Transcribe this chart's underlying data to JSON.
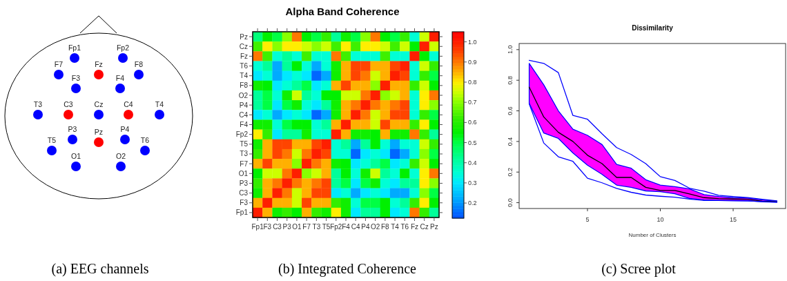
{
  "chart_data": [
    {
      "type": "other",
      "annotations": [
        "(a) EEG channels"
      ],
      "categories": [
        "Fp1",
        "Fp2",
        "F7",
        "Fz",
        "F8",
        "F3",
        "F4",
        "T3",
        "C3",
        "Cz",
        "C4",
        "T4",
        "P3",
        "Pz",
        "P4",
        "T5",
        "T6",
        "O1",
        "O2"
      ],
      "colors": [
        "#0000ff",
        "#0000ff",
        "#0000ff",
        "#ff0000",
        "#0000ff",
        "#0000ff",
        "#0000ff",
        "#0000ff",
        "#ff0000",
        "#0000ff",
        "#ff0000",
        "#0000ff",
        "#0000ff",
        "#ff0000",
        "#0000ff",
        "#0000ff",
        "#0000ff",
        "#0000ff",
        "#0000ff"
      ]
    },
    {
      "type": "heatmap",
      "title": "Alpha Band Coherence",
      "annotations": [
        "(b) Integrated Coherence"
      ],
      "categories": [
        "Fp1",
        "F3",
        "C3",
        "P3",
        "O1",
        "F7",
        "T3",
        "T5",
        "Fp2",
        "F4",
        "C4",
        "P4",
        "O2",
        "F8",
        "T4",
        "T6",
        "Fz",
        "Cz",
        "Pz"
      ],
      "y_categories": [
        "Pz",
        "Cz",
        "Fz",
        "T6",
        "T4",
        "F8",
        "O2",
        "P4",
        "C4",
        "F4",
        "Fp2",
        "T5",
        "T3",
        "F7",
        "O1",
        "P3",
        "C3",
        "F3",
        "Fp1"
      ],
      "cells": [
        [
          0.45,
          0.55,
          0.5,
          0.7,
          0.9,
          0.55,
          0.5,
          0.62,
          0.42,
          0.57,
          0.5,
          0.7,
          0.9,
          0.55,
          0.5,
          0.62,
          0.35,
          0.75,
          1.0
        ],
        [
          0.63,
          0.8,
          0.7,
          0.8,
          0.8,
          0.75,
          0.7,
          0.75,
          0.63,
          0.8,
          0.63,
          0.8,
          0.8,
          0.75,
          0.63,
          0.75,
          0.55,
          1.0,
          0.75
        ],
        [
          0.9,
          0.63,
          0.35,
          0.42,
          0.35,
          0.63,
          0.35,
          0.35,
          0.9,
          0.63,
          0.35,
          0.35,
          0.35,
          0.63,
          0.35,
          0.35,
          1.0,
          0.55,
          0.35
        ],
        [
          0.35,
          0.42,
          0.22,
          0.42,
          0.55,
          0.35,
          0.22,
          0.35,
          0.57,
          0.85,
          0.95,
          0.95,
          0.85,
          0.85,
          0.95,
          1.0,
          0.35,
          0.75,
          0.62
        ],
        [
          0.3,
          0.35,
          0.22,
          0.3,
          0.35,
          0.3,
          0.15,
          0.22,
          0.57,
          0.85,
          0.95,
          0.9,
          0.75,
          0.85,
          1.0,
          0.95,
          0.35,
          0.62,
          0.5
        ],
        [
          0.57,
          0.55,
          0.3,
          0.35,
          0.42,
          0.5,
          0.3,
          0.35,
          0.85,
          0.95,
          0.85,
          0.85,
          0.7,
          1.0,
          0.85,
          0.85,
          0.62,
          0.75,
          0.55
        ],
        [
          0.42,
          0.5,
          0.35,
          0.57,
          0.75,
          0.42,
          0.35,
          0.55,
          0.55,
          0.75,
          0.75,
          0.9,
          1.0,
          0.7,
          0.75,
          0.85,
          0.35,
          0.8,
          0.9
        ],
        [
          0.42,
          0.5,
          0.3,
          0.5,
          0.57,
          0.35,
          0.3,
          0.42,
          0.57,
          0.85,
          0.9,
          1.0,
          0.9,
          0.85,
          0.9,
          0.95,
          0.35,
          0.8,
          0.7
        ],
        [
          0.3,
          0.35,
          0.22,
          0.3,
          0.35,
          0.3,
          0.15,
          0.22,
          0.57,
          0.85,
          1.0,
          0.9,
          0.75,
          0.85,
          0.95,
          0.95,
          0.35,
          0.62,
          0.5
        ],
        [
          0.57,
          0.57,
          0.35,
          0.5,
          0.55,
          0.55,
          0.35,
          0.42,
          0.85,
          1.0,
          0.85,
          0.85,
          0.75,
          0.95,
          0.85,
          0.85,
          0.62,
          0.8,
          0.55
        ],
        [
          0.8,
          0.62,
          0.3,
          0.42,
          0.42,
          0.57,
          0.35,
          0.35,
          1.0,
          0.85,
          0.57,
          0.57,
          0.55,
          0.85,
          0.57,
          0.57,
          0.9,
          0.62,
          0.42
        ],
        [
          0.57,
          0.85,
          0.95,
          0.95,
          0.85,
          0.85,
          0.95,
          1.0,
          0.35,
          0.42,
          0.22,
          0.42,
          0.55,
          0.35,
          0.22,
          0.35,
          0.35,
          0.75,
          0.62
        ],
        [
          0.62,
          0.85,
          0.95,
          0.9,
          0.75,
          0.9,
          1.0,
          0.95,
          0.35,
          0.35,
          0.15,
          0.3,
          0.35,
          0.3,
          0.15,
          0.22,
          0.35,
          0.7,
          0.5
        ],
        [
          0.85,
          0.95,
          0.85,
          0.85,
          0.7,
          1.0,
          0.9,
          0.85,
          0.57,
          0.55,
          0.3,
          0.35,
          0.42,
          0.5,
          0.3,
          0.35,
          0.62,
          0.75,
          0.55
        ],
        [
          0.55,
          0.75,
          0.75,
          0.9,
          1.0,
          0.7,
          0.75,
          0.85,
          0.42,
          0.55,
          0.35,
          0.57,
          0.75,
          0.42,
          0.35,
          0.55,
          0.35,
          0.8,
          0.9
        ],
        [
          0.62,
          0.85,
          0.9,
          1.0,
          0.9,
          0.85,
          0.9,
          0.95,
          0.42,
          0.5,
          0.3,
          0.5,
          0.57,
          0.35,
          0.3,
          0.42,
          0.42,
          0.8,
          0.7
        ],
        [
          0.57,
          0.85,
          1.0,
          0.9,
          0.75,
          0.85,
          0.95,
          0.95,
          0.3,
          0.35,
          0.22,
          0.3,
          0.35,
          0.3,
          0.22,
          0.22,
          0.35,
          0.7,
          0.5
        ],
        [
          0.85,
          1.0,
          0.85,
          0.85,
          0.75,
          0.95,
          0.85,
          0.85,
          0.62,
          0.57,
          0.35,
          0.5,
          0.5,
          0.55,
          0.35,
          0.42,
          0.62,
          0.8,
          0.55
        ],
        [
          1.0,
          0.85,
          0.57,
          0.62,
          0.55,
          0.85,
          0.62,
          0.57,
          0.8,
          0.57,
          0.3,
          0.42,
          0.42,
          0.55,
          0.3,
          0.35,
          0.9,
          0.62,
          0.42
        ]
      ],
      "clim": [
        0.125,
        1.05
      ],
      "cticks": [
        {
          "value": 0.2,
          "label": "0.2"
        },
        {
          "value": 0.3,
          "label": "0.3"
        },
        {
          "value": 0.4,
          "label": "0.4"
        },
        {
          "value": 0.5,
          "label": "0.5"
        },
        {
          "value": 0.6,
          "label": "0.6"
        },
        {
          "value": 0.7,
          "label": "0.7"
        },
        {
          "value": 0.8,
          "label": "0.8"
        },
        {
          "value": 0.9,
          "label": "0.9"
        },
        {
          "value": 1.0,
          "label": "1.0"
        }
      ]
    },
    {
      "type": "line",
      "title": "Dissimilarity",
      "xlabel": "Number of Clusters",
      "annotations": [
        "(c) Scree plot"
      ],
      "x": [
        1,
        2,
        3,
        4,
        5,
        6,
        7,
        8,
        9,
        10,
        11,
        12,
        13,
        14,
        15,
        16,
        17,
        18
      ],
      "series": [
        {
          "color": "#000000",
          "values": [
            0.755,
            0.56,
            0.46,
            0.4,
            0.31,
            0.255,
            0.165,
            0.165,
            0.1,
            0.08,
            0.08,
            0.057,
            0.033,
            0.027,
            0.024,
            0.022,
            0.01,
            0.006
          ],
          "lower": [
            0.65,
            0.455,
            0.42,
            0.325,
            0.245,
            0.185,
            0.115,
            0.1,
            0.077,
            0.072,
            0.058,
            0.028,
            0.018,
            0.016,
            0.014,
            0.013,
            0.006,
            0.003
          ],
          "upper": [
            0.91,
            0.77,
            0.6,
            0.48,
            0.44,
            0.38,
            0.25,
            0.225,
            0.15,
            0.115,
            0.105,
            0.09,
            0.053,
            0.04,
            0.033,
            0.03,
            0.018,
            0.01
          ]
        },
        {
          "color": "#0000ff",
          "values": [
            0.93,
            0.91,
            0.85,
            0.57,
            0.545,
            0.45,
            0.36,
            0.315,
            0.255,
            0.17,
            0.145,
            0.095,
            0.075,
            0.048,
            0.04,
            0.034,
            0.022,
            0.012
          ]
        },
        {
          "color": "#0000ff",
          "values": [
            0.645,
            0.39,
            0.3,
            0.27,
            0.16,
            0.13,
            0.093,
            0.068,
            0.05,
            0.042,
            0.036,
            0.023,
            0.015,
            0.014,
            0.012,
            0.011,
            0.008,
            0.003
          ]
        }
      ],
      "xlim": [
        0.31,
        18.6
      ],
      "ylim": [
        -0.038,
        1.04
      ],
      "xticks": [
        5,
        10,
        15
      ],
      "yticks": [
        {
          "value": 0,
          "label": "0.0"
        },
        {
          "value": 0.2,
          "label": "0.2"
        },
        {
          "value": 0.4,
          "label": "0.4"
        },
        {
          "value": 0.6,
          "label": "0.6"
        },
        {
          "value": 0.8,
          "label": "0.8"
        },
        {
          "value": 1.0,
          "label": "1.0"
        }
      ],
      "grid": false,
      "marker": "none",
      "line_style": "solid"
    }
  ]
}
